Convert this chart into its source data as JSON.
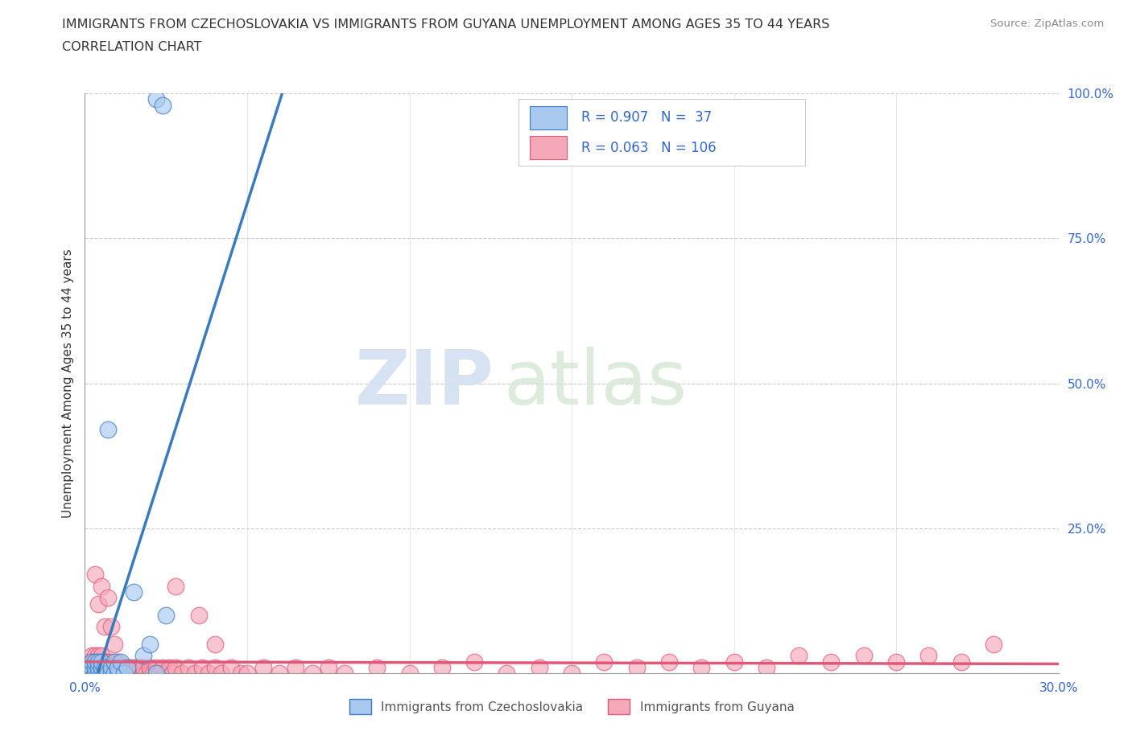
{
  "title_line1": "IMMIGRANTS FROM CZECHOSLOVAKIA VS IMMIGRANTS FROM GUYANA UNEMPLOYMENT AMONG AGES 35 TO 44 YEARS",
  "title_line2": "CORRELATION CHART",
  "source_text": "Source: ZipAtlas.com",
  "ylabel": "Unemployment Among Ages 35 to 44 years",
  "xlim": [
    0.0,
    0.3
  ],
  "ylim": [
    0.0,
    1.0
  ],
  "watermark_zip": "ZIP",
  "watermark_atlas": "atlas",
  "color_czech": "#a8c8f0",
  "color_guyana": "#f5a8b8",
  "line_color_czech": "#3a7abf",
  "line_color_guyana": "#e05878",
  "background_color": "#ffffff",
  "czech_x": [
    0.001,
    0.001,
    0.001,
    0.002,
    0.002,
    0.002,
    0.002,
    0.003,
    0.003,
    0.003,
    0.003,
    0.004,
    0.004,
    0.004,
    0.005,
    0.005,
    0.005,
    0.006,
    0.006,
    0.007,
    0.007,
    0.008,
    0.008,
    0.009,
    0.009,
    0.01,
    0.01,
    0.011,
    0.012,
    0.013,
    0.015,
    0.018,
    0.02,
    0.022,
    0.025,
    0.022,
    0.024
  ],
  "czech_y": [
    0.0,
    0.0,
    0.01,
    0.0,
    0.0,
    0.01,
    0.02,
    0.0,
    0.0,
    0.01,
    0.02,
    0.0,
    0.01,
    0.02,
    0.0,
    0.01,
    0.02,
    0.0,
    0.01,
    0.0,
    0.42,
    0.0,
    0.01,
    0.0,
    0.02,
    0.0,
    0.01,
    0.02,
    0.0,
    0.01,
    0.14,
    0.03,
    0.05,
    0.0,
    0.1,
    0.99,
    0.98
  ],
  "guyana_x": [
    0.001,
    0.001,
    0.001,
    0.002,
    0.002,
    0.002,
    0.002,
    0.003,
    0.003,
    0.003,
    0.003,
    0.004,
    0.004,
    0.004,
    0.004,
    0.005,
    0.005,
    0.005,
    0.005,
    0.006,
    0.006,
    0.006,
    0.007,
    0.007,
    0.007,
    0.008,
    0.008,
    0.008,
    0.009,
    0.009,
    0.01,
    0.01,
    0.01,
    0.011,
    0.011,
    0.012,
    0.012,
    0.013,
    0.013,
    0.014,
    0.014,
    0.015,
    0.015,
    0.016,
    0.016,
    0.017,
    0.017,
    0.018,
    0.018,
    0.019,
    0.02,
    0.02,
    0.021,
    0.022,
    0.023,
    0.024,
    0.025,
    0.026,
    0.027,
    0.028,
    0.03,
    0.032,
    0.034,
    0.036,
    0.038,
    0.04,
    0.042,
    0.045,
    0.048,
    0.05,
    0.055,
    0.06,
    0.065,
    0.07,
    0.075,
    0.08,
    0.09,
    0.1,
    0.11,
    0.12,
    0.13,
    0.14,
    0.15,
    0.16,
    0.17,
    0.18,
    0.19,
    0.2,
    0.21,
    0.22,
    0.23,
    0.24,
    0.25,
    0.26,
    0.27,
    0.28,
    0.003,
    0.004,
    0.005,
    0.006,
    0.007,
    0.008,
    0.009,
    0.028,
    0.035,
    0.04
  ],
  "guyana_y": [
    0.0,
    0.01,
    0.02,
    0.0,
    0.01,
    0.02,
    0.03,
    0.0,
    0.01,
    0.02,
    0.03,
    0.0,
    0.01,
    0.02,
    0.03,
    0.0,
    0.01,
    0.02,
    0.03,
    0.0,
    0.01,
    0.02,
    0.0,
    0.01,
    0.02,
    0.0,
    0.01,
    0.02,
    0.0,
    0.01,
    0.0,
    0.01,
    0.02,
    0.0,
    0.01,
    0.0,
    0.01,
    0.0,
    0.01,
    0.0,
    0.01,
    0.0,
    0.01,
    0.0,
    0.01,
    0.0,
    0.01,
    0.0,
    0.01,
    0.0,
    0.0,
    0.01,
    0.0,
    0.01,
    0.0,
    0.01,
    0.0,
    0.01,
    0.0,
    0.01,
    0.0,
    0.01,
    0.0,
    0.01,
    0.0,
    0.01,
    0.0,
    0.01,
    0.0,
    0.0,
    0.01,
    0.0,
    0.01,
    0.0,
    0.01,
    0.0,
    0.01,
    0.0,
    0.01,
    0.02,
    0.0,
    0.01,
    0.0,
    0.02,
    0.01,
    0.02,
    0.01,
    0.02,
    0.01,
    0.03,
    0.02,
    0.03,
    0.02,
    0.03,
    0.02,
    0.05,
    0.17,
    0.12,
    0.15,
    0.08,
    0.13,
    0.08,
    0.05,
    0.15,
    0.1,
    0.05
  ]
}
